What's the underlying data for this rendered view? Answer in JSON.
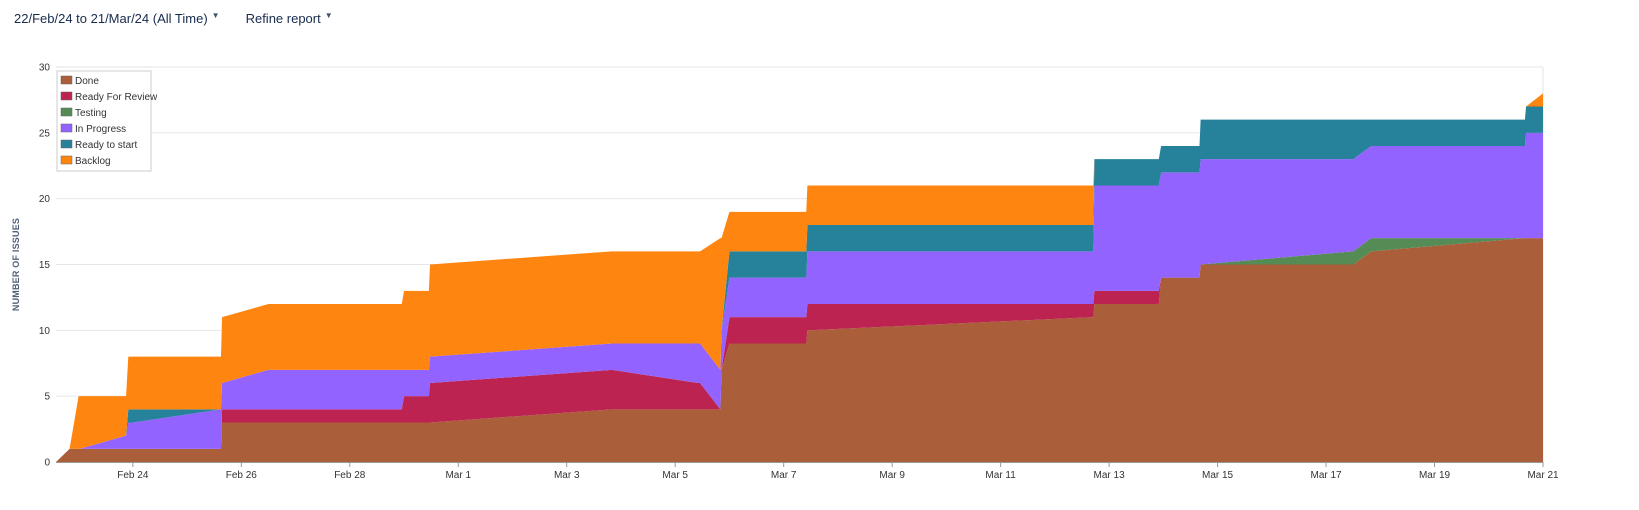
{
  "toolbar": {
    "date_range_label": "22/Feb/24 to 21/Mar/24 (All Time)",
    "refine_label": "Refine report"
  },
  "colors": {
    "Done": "#ab5e3a",
    "Ready For Review": "#bd2350",
    "Testing": "#558b54",
    "In Progress": "#9263ff",
    "Ready to start": "#25829a",
    "Backlog": "#ff8511"
  },
  "chart_data": {
    "type": "area",
    "stacked": true,
    "title": "",
    "xlabel": "",
    "ylabel": "NUMBER OF ISSUES",
    "ylim": [
      0,
      30
    ],
    "yticks": [
      0,
      5,
      10,
      15,
      20,
      25,
      30
    ],
    "xlim": [
      "2024-02-22T14:00",
      "2024-03-21T00:00"
    ],
    "xticks": [
      {
        "date": "2024-02-24",
        "label": "Feb 24"
      },
      {
        "date": "2024-02-26",
        "label": "Feb 26"
      },
      {
        "date": "2024-02-28",
        "label": "Feb 28"
      },
      {
        "date": "2024-03-01",
        "label": "Mar 1"
      },
      {
        "date": "2024-03-03",
        "label": "Mar 3"
      },
      {
        "date": "2024-03-05",
        "label": "Mar 5"
      },
      {
        "date": "2024-03-07",
        "label": "Mar 7"
      },
      {
        "date": "2024-03-09",
        "label": "Mar 9"
      },
      {
        "date": "2024-03-11",
        "label": "Mar 11"
      },
      {
        "date": "2024-03-13",
        "label": "Mar 13"
      },
      {
        "date": "2024-03-15",
        "label": "Mar 15"
      },
      {
        "date": "2024-03-17",
        "label": "Mar 17"
      },
      {
        "date": "2024-03-19",
        "label": "Mar 19"
      },
      {
        "date": "2024-03-21",
        "label": "Mar 21"
      }
    ],
    "grid": true,
    "legend_position": "top-left",
    "series_order_bottom_to_top": [
      "Done",
      "Ready For Review",
      "Testing",
      "In Progress",
      "Ready to start",
      "Backlog"
    ],
    "x": [
      "2024-02-22T14:00",
      "2024-02-22T20:00",
      "2024-02-23T00:00",
      "2024-02-23T00:30",
      "2024-02-23T21:00",
      "2024-02-23T22:00",
      "2024-02-24T00:00",
      "2024-02-25T15:00",
      "2024-02-25T15:30",
      "2024-02-26T12:00",
      "2024-02-28T23:00",
      "2024-02-29T00:00",
      "2024-02-29T11:00",
      "2024-02-29T11:30",
      "2024-03-03T20:00",
      "2024-03-05T10:00",
      "2024-03-05T11:00",
      "2024-03-05T20:00",
      "2024-03-05T20:30",
      "2024-03-06T00:00",
      "2024-03-07T10:00",
      "2024-03-07T10:30",
      "2024-03-12T17:00",
      "2024-03-12T17:30",
      "2024-03-13T22:00",
      "2024-03-13T23:00",
      "2024-03-14T16:00",
      "2024-03-14T16:30",
      "2024-03-17T12:00",
      "2024-03-17T20:00",
      "2024-03-20T16:00",
      "2024-03-20T16:30",
      "2024-03-21T00:00"
    ],
    "series": [
      {
        "name": "Done",
        "values": [
          0,
          1,
          1,
          1,
          1,
          1,
          1,
          1,
          3,
          3,
          3,
          3,
          3,
          3,
          4,
          4,
          4,
          4,
          7,
          9,
          9,
          10,
          11,
          12,
          12,
          14,
          14,
          15,
          15,
          16,
          17,
          17,
          17
        ]
      },
      {
        "name": "Ready For Review",
        "values": [
          0,
          0,
          0,
          0,
          0,
          0,
          0,
          0,
          1,
          1,
          1,
          2,
          2,
          3,
          3,
          2,
          2,
          0,
          0,
          2,
          2,
          2,
          1,
          1,
          1,
          0,
          0,
          0,
          0,
          0,
          0,
          0,
          0
        ]
      },
      {
        "name": "Testing",
        "values": [
          0,
          0,
          0,
          0,
          0,
          0,
          0,
          0,
          0,
          0,
          0,
          0,
          0,
          0,
          0,
          0,
          0,
          0,
          0,
          0,
          0,
          0,
          0,
          0,
          0,
          0,
          0,
          0,
          1,
          1,
          0,
          0,
          0
        ]
      },
      {
        "name": "In Progress",
        "values": [
          0,
          0,
          0,
          0,
          1,
          2,
          2,
          3,
          2,
          3,
          3,
          2,
          2,
          2,
          2,
          3,
          3,
          3,
          3,
          3,
          3,
          4,
          4,
          8,
          8,
          8,
          8,
          8,
          7,
          7,
          7,
          8,
          8
        ]
      },
      {
        "name": "Ready to start",
        "values": [
          0,
          0,
          0,
          0,
          0,
          1,
          1,
          0,
          0,
          0,
          0,
          0,
          0,
          0,
          0,
          0,
          0,
          0,
          0,
          2,
          2,
          2,
          2,
          2,
          2,
          2,
          2,
          3,
          3,
          2,
          2,
          2,
          2
        ]
      },
      {
        "name": "Backlog",
        "values": [
          0,
          0,
          4,
          4,
          3,
          4,
          4,
          4,
          5,
          5,
          5,
          6,
          6,
          7,
          7,
          7,
          7,
          10,
          7,
          3,
          3,
          3,
          3,
          0,
          0,
          0,
          0,
          0,
          0,
          0,
          0,
          0,
          1
        ]
      }
    ]
  }
}
